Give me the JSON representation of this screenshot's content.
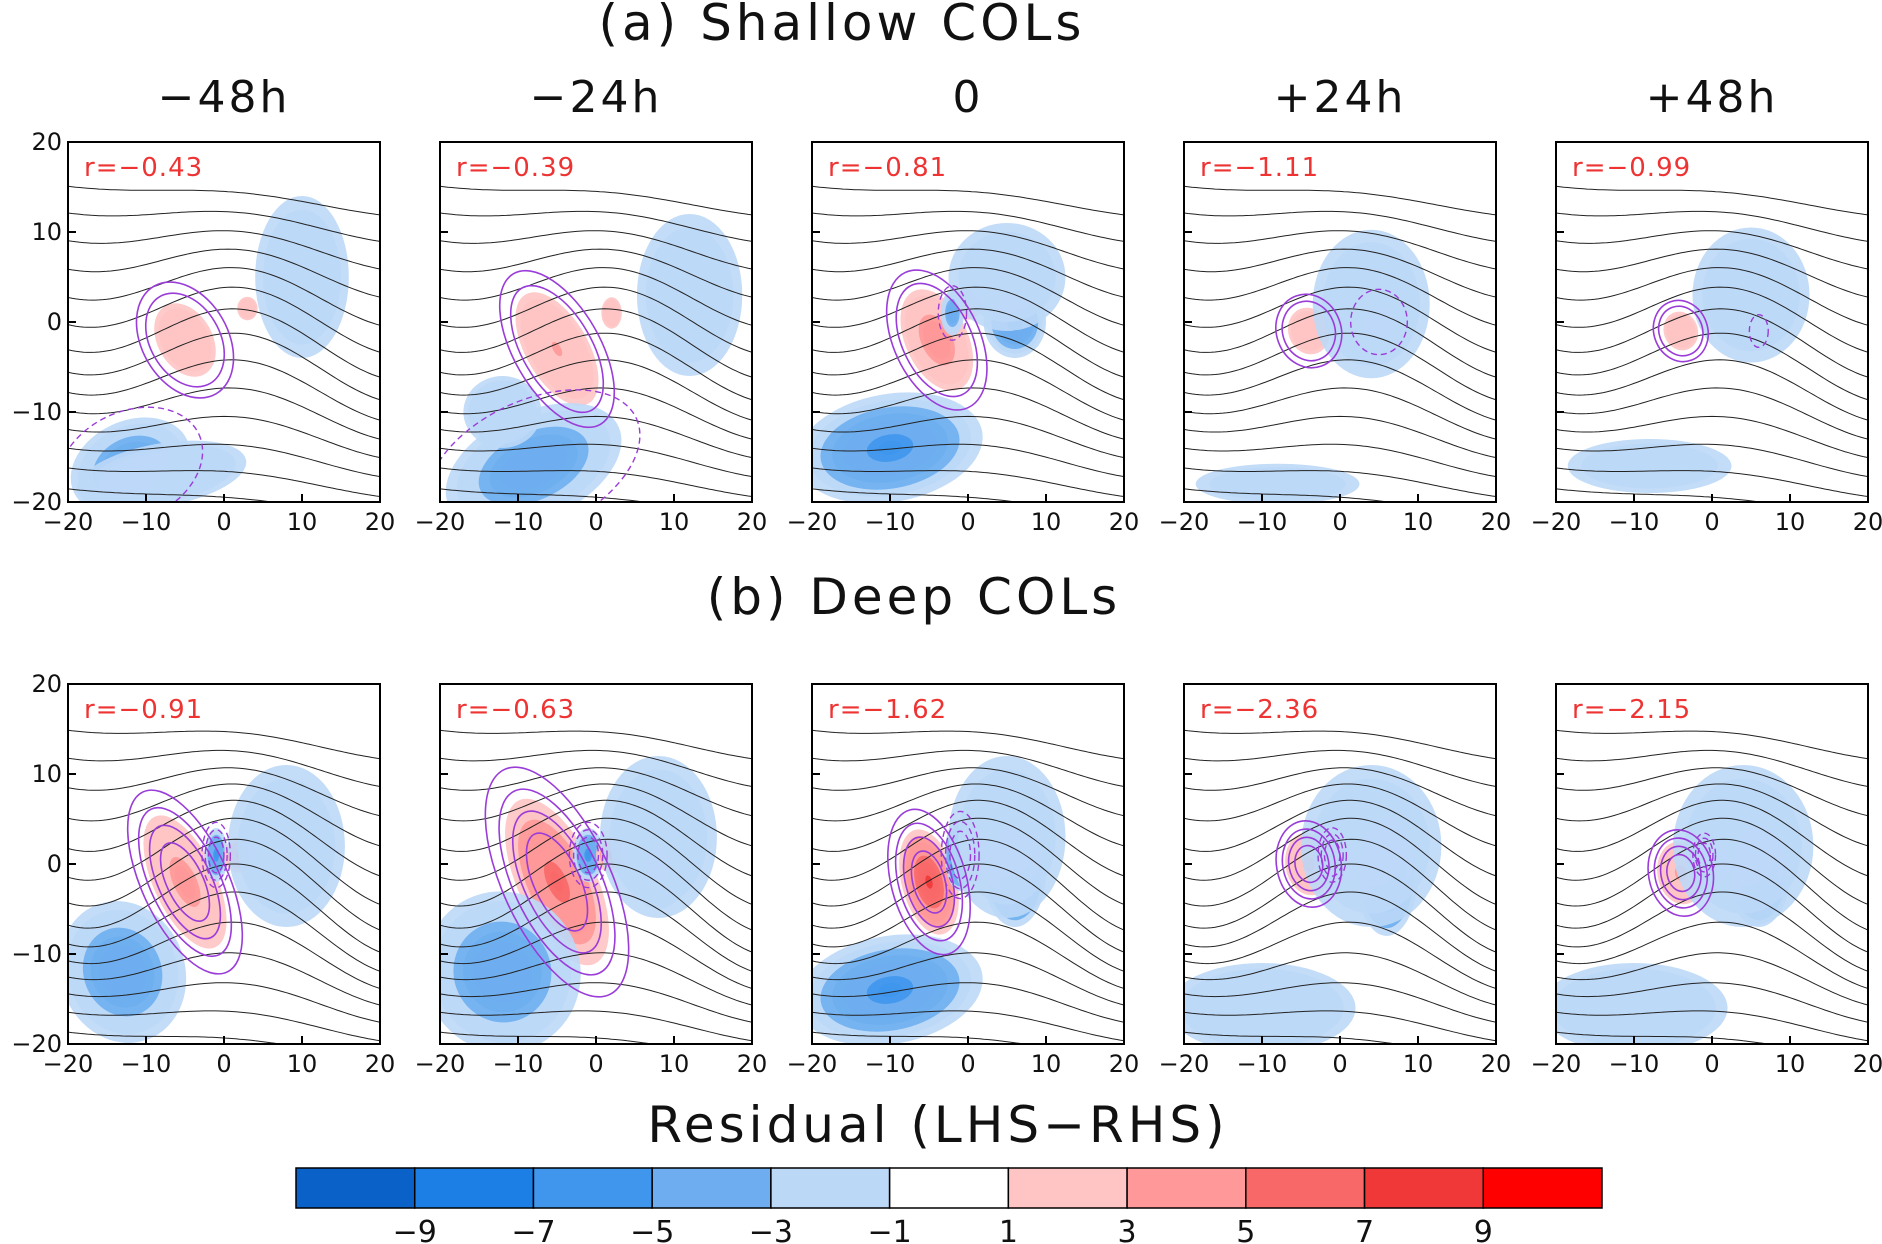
{
  "chart_data": {
    "type": "heatmap",
    "rows": [
      {
        "title": "(a) Shallow COLs",
        "panels": [
          {
            "lag": "−48h",
            "r_label": "r=−0.43",
            "r": -0.43,
            "blobs": [
              [
                -5,
                -2,
                4,
                5,
                -30,
                2.4
              ],
              [
                3,
                1.5,
                1.5,
                1.5,
                0,
                2.4
              ],
              [
                10,
                5,
                8,
                12,
                0,
                -2
              ],
              [
                -12,
                -16,
                8,
                5,
                -25,
                -5
              ],
              [
                -8,
                -17,
                11,
                3.5,
                -10,
                -3
              ]
            ]
          },
          {
            "lag": "−24h",
            "r_label": "r=−0.39",
            "r": -0.39,
            "blobs": [
              [
                -5,
                -3,
                4,
                7,
                -30,
                3
              ],
              [
                2,
                1,
                1.5,
                2,
                0,
                2.4
              ],
              [
                12,
                3,
                9,
                12,
                0,
                -2
              ],
              [
                -8,
                -16,
                12,
                6,
                -25,
                -5
              ],
              [
                -12,
                -10,
                5,
                4,
                0,
                -3
              ]
            ]
          },
          {
            "lag": "0",
            "r_label": "r=−0.81",
            "r": -0.81,
            "blobs": [
              [
                -4,
                -2,
                4,
                6,
                -25,
                4.2
              ],
              [
                0,
                2,
                2,
                2,
                0,
                2.4
              ],
              [
                -2,
                1,
                1.5,
                2.5,
                0,
                -5
              ],
              [
                6,
                0,
                4,
                4,
                0,
                -6
              ],
              [
                5,
                5,
                10,
                8,
                0,
                -2
              ],
              [
                -10,
                -14,
                12,
                6,
                -10,
                -6
              ]
            ]
          },
          {
            "lag": "+24h",
            "r_label": "r=−1.11",
            "r": -1.11,
            "blobs": [
              [
                -4,
                -1,
                3,
                3,
                -20,
                2.4
              ],
              [
                5,
                0,
                3,
                3,
                0,
                -5
              ],
              [
                4,
                2,
                10,
                11,
                0,
                -2
              ],
              [
                -8,
                -18,
                14,
                3,
                0,
                -2
              ]
            ]
          },
          {
            "lag": "+48h",
            "r_label": "r=−0.99",
            "r": -0.99,
            "blobs": [
              [
                -4,
                -1,
                2.5,
                2.5,
                -20,
                2.4
              ],
              [
                6,
                -1,
                1,
                1.5,
                0,
                -5
              ],
              [
                5,
                3,
                10,
                10,
                0,
                -2
              ],
              [
                -8,
                -16,
                14,
                4,
                0,
                -2
              ]
            ]
          }
        ]
      },
      {
        "title": "(b) Deep COLs",
        "panels": [
          {
            "lag": "−48h",
            "r_label": "r=−0.91",
            "r": -0.91,
            "blobs": [
              [
                -5,
                -2,
                4,
                8,
                -25,
                4
              ],
              [
                -1,
                1,
                1.5,
                3,
                0,
                -6
              ],
              [
                2,
                1,
                2,
                2,
                0,
                6
              ],
              [
                8,
                2,
                10,
                12,
                0,
                -2.2
              ],
              [
                -13,
                -12,
                8,
                8,
                -20,
                -5
              ]
            ]
          },
          {
            "lag": "−24h",
            "r_label": "r=−0.63",
            "r": -0.63,
            "blobs": [
              [
                -5,
                -2,
                5,
                10,
                -25,
                6
              ],
              [
                -1,
                1,
                2,
                3,
                0,
                -6
              ],
              [
                2,
                1,
                2,
                2,
                0,
                6
              ],
              [
                8,
                0,
                4,
                5,
                0,
                -4
              ],
              [
                8,
                3,
                10,
                12,
                0,
                -2.2
              ],
              [
                -12,
                -12,
                10,
                9,
                -20,
                -5
              ]
            ]
          },
          {
            "lag": "0",
            "r_label": "r=−1.62",
            "r": -1.62,
            "blobs": [
              [
                -5,
                -2,
                3.5,
                6,
                -15,
                7.5
              ],
              [
                -1,
                1,
                2,
                4,
                0,
                -8
              ],
              [
                1,
                1,
                2,
                3,
                0,
                7
              ],
              [
                6,
                -1,
                4,
                6,
                0,
                -7.5
              ],
              [
                5,
                3,
                10,
                12,
                0,
                -2.2
              ],
              [
                -10,
                -14,
                12,
                6,
                -10,
                -6
              ]
            ]
          },
          {
            "lag": "+24h",
            "r_label": "r=−2.36",
            "r": -2.36,
            "blobs": [
              [
                -4,
                0,
                3,
                3.5,
                -10,
                3.5
              ],
              [
                -1,
                1,
                1.5,
                2.5,
                0,
                -7
              ],
              [
                1,
                0,
                1.5,
                2,
                0,
                3
              ],
              [
                6,
                -1,
                4,
                7,
                0,
                -8.5
              ],
              [
                4,
                2,
                12,
                12,
                0,
                -2.2
              ],
              [
                -10,
                -16,
                12,
                5,
                0,
                -3
              ]
            ]
          },
          {
            "lag": "+48h",
            "r_label": "r=−2.15",
            "r": -2.15,
            "blobs": [
              [
                -4,
                -1,
                3,
                3.5,
                -10,
                3.5
              ],
              [
                -1,
                1,
                1.2,
                2,
                0,
                -6
              ],
              [
                1,
                0,
                1.2,
                2,
                0,
                3
              ],
              [
                6,
                -1,
                4,
                6,
                0,
                -8
              ],
              [
                4,
                2,
                12,
                12,
                0,
                -2.2
              ],
              [
                -10,
                -16,
                12,
                5,
                0,
                -3
              ]
            ]
          }
        ]
      }
    ],
    "x_ticks": [
      "−20",
      "−10",
      "0",
      "10",
      "20"
    ],
    "y_ticks": [
      "20",
      "10",
      "0",
      "−10",
      "−20"
    ],
    "xlim": [
      -20,
      20
    ],
    "ylim": [
      -20,
      20
    ],
    "colorbar": {
      "label": "Residual (LHS−RHS)",
      "levels": [
        -9,
        -7,
        -5,
        -3,
        -1,
        1,
        3,
        5,
        7,
        9
      ],
      "tick_labels": [
        "−9",
        "−7",
        "−5",
        "−3",
        "−1",
        "1",
        "3",
        "5",
        "7",
        "9"
      ],
      "colors": [
        "#0a62c9",
        "#1c7fe6",
        "#3f96ec",
        "#6eaef0",
        "#bcd8f7",
        "#ffffff",
        "#ffc4c4",
        "#ff9898",
        "#f86868",
        "#f03838",
        "#ff0000"
      ]
    },
    "contour_color": "#222222",
    "positive_contour_color": "#9a3cd8",
    "label_color": "#ee3333"
  }
}
